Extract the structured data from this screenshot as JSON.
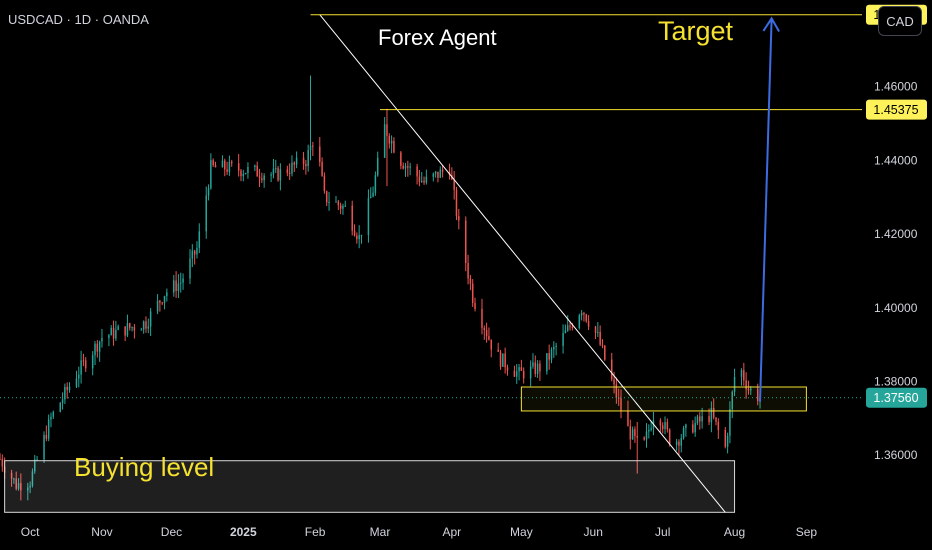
{
  "header": {
    "symbol": "USDCAD",
    "interval": "1D",
    "broker": "OANDA",
    "sep": "·"
  },
  "currency_button": "CAD",
  "colors": {
    "up": "#26a69a",
    "down": "#ef5350",
    "level": "#f5e12f",
    "trend": "#ffffff",
    "arrow": "#3d6be0",
    "price_tag": "#fdf25a"
  },
  "chart_data": {
    "type": "candlestick",
    "title": "",
    "ylim": [
      1.3435,
      1.4835
    ],
    "y_ticks": [
      1.36,
      1.38,
      1.4,
      1.42,
      1.44,
      1.46
    ],
    "y_tick_labels": [
      "1.36000",
      "1.38000",
      "1.40000",
      "1.42000",
      "1.44000",
      "1.46000"
    ],
    "x_range": [
      "2024-09-18",
      "2025-09-25"
    ],
    "x_ticks": [
      {
        "date": "2024-10-01",
        "label": "Oct",
        "bold": false
      },
      {
        "date": "2024-11-01",
        "label": "Nov",
        "bold": false
      },
      {
        "date": "2024-12-01",
        "label": "Dec",
        "bold": false
      },
      {
        "date": "2025-01-01",
        "label": "2025",
        "bold": true
      },
      {
        "date": "2025-02-01",
        "label": "Feb",
        "bold": false
      },
      {
        "date": "2025-03-01",
        "label": "Mar",
        "bold": false
      },
      {
        "date": "2025-04-01",
        "label": "Apr",
        "bold": false
      },
      {
        "date": "2025-05-01",
        "label": "May",
        "bold": false
      },
      {
        "date": "2025-06-01",
        "label": "Jun",
        "bold": false
      },
      {
        "date": "2025-07-01",
        "label": "Jul",
        "bold": false
      },
      {
        "date": "2025-08-01",
        "label": "Aug",
        "bold": false
      },
      {
        "date": "2025-09-01",
        "label": "Sep",
        "bold": false
      }
    ],
    "price_path": [
      [
        "2024-09-18",
        1.359
      ],
      [
        "2024-09-25",
        1.352
      ],
      [
        "2024-10-01",
        1.353
      ],
      [
        "2024-10-10",
        1.37
      ],
      [
        "2024-10-20",
        1.381
      ],
      [
        "2024-11-01",
        1.392
      ],
      [
        "2024-11-10",
        1.394
      ],
      [
        "2024-11-20",
        1.396
      ],
      [
        "2024-11-28",
        1.404
      ],
      [
        "2024-12-05",
        1.407
      ],
      [
        "2024-12-12",
        1.416
      ],
      [
        "2024-12-18",
        1.438
      ],
      [
        "2024-12-25",
        1.438
      ],
      [
        "2025-01-05",
        1.437
      ],
      [
        "2025-01-15",
        1.436
      ],
      [
        "2025-01-28",
        1.44
      ],
      [
        "2025-02-01",
        1.447
      ],
      [
        "2025-02-05",
        1.43
      ],
      [
        "2025-02-14",
        1.427
      ],
      [
        "2025-02-20",
        1.419
      ],
      [
        "2025-02-26",
        1.432
      ],
      [
        "2025-03-03",
        1.449
      ],
      [
        "2025-03-10",
        1.44
      ],
      [
        "2025-03-20",
        1.434
      ],
      [
        "2025-03-31",
        1.438
      ],
      [
        "2025-04-04",
        1.422
      ],
      [
        "2025-04-10",
        1.403
      ],
      [
        "2025-04-20",
        1.387
      ],
      [
        "2025-04-30",
        1.382
      ],
      [
        "2025-05-10",
        1.384
      ],
      [
        "2025-05-20",
        1.393
      ],
      [
        "2025-05-27",
        1.4
      ],
      [
        "2025-06-03",
        1.392
      ],
      [
        "2025-06-10",
        1.378
      ],
      [
        "2025-06-16",
        1.367
      ],
      [
        "2025-06-22",
        1.361
      ],
      [
        "2025-06-28",
        1.373
      ],
      [
        "2025-07-05",
        1.363
      ],
      [
        "2025-07-14",
        1.368
      ],
      [
        "2025-07-22",
        1.371
      ],
      [
        "2025-07-28",
        1.362
      ],
      [
        "2025-08-02",
        1.386
      ],
      [
        "2025-08-07",
        1.378
      ],
      [
        "2025-08-12",
        1.3756
      ]
    ],
    "spikes": [
      {
        "date": "2025-02-01",
        "high": 1.4795,
        "low": 1.438
      },
      {
        "date": "2025-01-30",
        "high": 1.463,
        "low": 1.44
      },
      {
        "date": "2025-03-04",
        "high": 1.454,
        "low": 1.433
      },
      {
        "date": "2025-06-20",
        "high": 1.369,
        "low": 1.355
      }
    ],
    "last_price": 1.3756,
    "last_price_label": "1.37560",
    "annotations": {
      "title_text": "Forex Agent",
      "target_text": "Target",
      "buying_text": "Buying level",
      "target_level": {
        "price": 1.4795,
        "label": "1.47950",
        "from": "2025-01-30"
      },
      "resistance_level": {
        "price": 1.45375,
        "label": "1.45375",
        "from": "2025-03-01"
      },
      "trendline": {
        "from": [
          "2025-02-03",
          1.4795
        ],
        "to": [
          "2025-07-28",
          1.3445
        ]
      },
      "zone_upper": {
        "from": "2025-05-01",
        "to": "2025-09-01",
        "low": 1.372,
        "high": 1.3785
      },
      "zone_buy": {
        "from": "2024-09-20",
        "to": "2025-08-01",
        "low": 1.3445,
        "high": 1.3585
      },
      "arrow": {
        "from": [
          "2025-08-12",
          1.3745
        ],
        "to": [
          "2025-08-17",
          1.4785
        ]
      }
    }
  }
}
